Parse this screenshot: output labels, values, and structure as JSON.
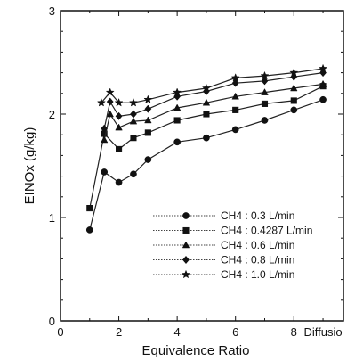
{
  "chart_data": {
    "type": "line",
    "xlabel": "Equivalence Ratio",
    "ylabel": "EINOx (g/kg)",
    "xlim": [
      0,
      9.7
    ],
    "ylim": [
      0,
      3
    ],
    "x_ticks": [
      0,
      2,
      4,
      6,
      8
    ],
    "x_tick_labels": [
      "0",
      "2",
      "4",
      "6",
      "8"
    ],
    "x_extra_tick_label": "Diffusio",
    "y_ticks": [
      0,
      1,
      2,
      3
    ],
    "y_tick_labels": [
      "0",
      "1",
      "2",
      "3"
    ],
    "legend_position": "bottom-right",
    "series": [
      {
        "name": "CH4 : 0.3 L/min",
        "marker": "circle",
        "x": [
          1.0,
          1.5,
          2.0,
          2.5,
          3.0,
          4.0,
          5.0,
          6.0,
          7.0,
          8.0,
          9.0
        ],
        "y": [
          0.88,
          1.44,
          1.34,
          1.42,
          1.56,
          1.73,
          1.77,
          1.85,
          1.94,
          2.04,
          2.14
        ]
      },
      {
        "name": "CH4 : 0.4287 L/min",
        "marker": "square",
        "x": [
          1.0,
          1.5,
          2.0,
          2.5,
          3.0,
          4.0,
          5.0,
          6.0,
          7.0,
          8.0,
          9.0
        ],
        "y": [
          1.09,
          1.81,
          1.66,
          1.77,
          1.82,
          1.94,
          2.0,
          2.04,
          2.1,
          2.13,
          2.27
        ]
      },
      {
        "name": "CH4 : 0.6 L/min",
        "marker": "triangle",
        "x": [
          1.5,
          1.7,
          2.0,
          2.5,
          3.0,
          4.0,
          5.0,
          6.0,
          7.0,
          8.0,
          9.0
        ],
        "y": [
          1.75,
          2.0,
          1.87,
          1.93,
          1.94,
          2.06,
          2.11,
          2.17,
          2.21,
          2.25,
          2.29
        ]
      },
      {
        "name": "CH4 : 0.8 L/min",
        "marker": "diamond",
        "x": [
          1.5,
          1.7,
          2.0,
          2.5,
          3.0,
          4.0,
          5.0,
          6.0,
          7.0,
          8.0,
          9.0
        ],
        "y": [
          1.86,
          2.12,
          1.98,
          2.0,
          2.05,
          2.17,
          2.22,
          2.3,
          2.32,
          2.36,
          2.4
        ]
      },
      {
        "name": "CH4 : 1.0 L/min",
        "marker": "star",
        "x": [
          1.4,
          1.7,
          2.0,
          2.5,
          3.0,
          4.0,
          5.0,
          6.0,
          7.0,
          8.0,
          9.0
        ],
        "y": [
          2.11,
          2.21,
          2.11,
          2.11,
          2.14,
          2.21,
          2.25,
          2.35,
          2.37,
          2.4,
          2.44
        ]
      }
    ]
  }
}
